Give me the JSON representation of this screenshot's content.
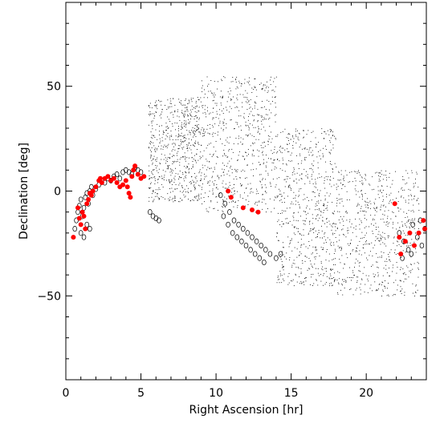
{
  "chart_data": {
    "type": "scatter",
    "xlabel": "Right Ascension [hr]",
    "ylabel": "Declination [deg]",
    "xlim": [
      0,
      24
    ],
    "ylim": [
      -90,
      90
    ],
    "xticks": [
      0,
      5,
      10,
      15,
      20
    ],
    "yticks": [
      -50,
      0,
      50
    ],
    "xtick_labels": [
      "0",
      "5",
      "10",
      "15",
      "20"
    ],
    "ytick_labels": [
      "−50",
      "0",
      "50"
    ],
    "grid": false,
    "legend": "none",
    "colors": {
      "background_points": "#000000",
      "open_markers": "#000000",
      "highlight_points": "#ff0000"
    },
    "series": [
      {
        "marker": "small-dot",
        "description_values": "dense cloud of background points",
        "cloud_regions": [
          {
            "ra": [
              5.5,
              9.0
            ],
            "dec": [
              -5,
              45
            ]
          },
          {
            "ra": [
              9.0,
              14.0
            ],
            "dec": [
              -10,
              55
            ]
          },
          {
            "ra": [
              14.0,
              18.0
            ],
            "dec": [
              -45,
              30
            ]
          },
          {
            "ra": [
              18.0,
              23.5
            ],
            "dec": [
              -50,
              10
            ]
          }
        ]
      },
      {
        "marker": "open-circle",
        "points": [
          [
            0.6,
            -18
          ],
          [
            0.7,
            -14
          ],
          [
            0.8,
            -10
          ],
          [
            0.9,
            -7
          ],
          [
            1.0,
            -4
          ],
          [
            1.1,
            -12
          ],
          [
            1.2,
            -8
          ],
          [
            1.3,
            -3
          ],
          [
            1.4,
            -1
          ],
          [
            1.5,
            -6
          ],
          [
            1.6,
            0
          ],
          [
            1.7,
            2
          ],
          [
            1.8,
            -2
          ],
          [
            2.0,
            1
          ],
          [
            2.2,
            3
          ],
          [
            2.4,
            5
          ],
          [
            2.6,
            4
          ],
          [
            2.8,
            6
          ],
          [
            3.0,
            5
          ],
          [
            3.2,
            7
          ],
          [
            3.4,
            8
          ],
          [
            3.6,
            6
          ],
          [
            3.8,
            9
          ],
          [
            4.0,
            10
          ],
          [
            4.2,
            9
          ],
          [
            4.4,
            8
          ],
          [
            4.6,
            11
          ],
          [
            4.8,
            10
          ],
          [
            5.0,
            9
          ],
          [
            1.0,
            -20
          ],
          [
            1.2,
            -22
          ],
          [
            1.4,
            -16
          ],
          [
            1.6,
            -18
          ],
          [
            5.6,
            -10
          ],
          [
            5.8,
            -12
          ],
          [
            6.0,
            -13
          ],
          [
            6.2,
            -14
          ],
          [
            10.3,
            -2
          ],
          [
            10.6,
            -6
          ],
          [
            10.9,
            -10
          ],
          [
            11.2,
            -14
          ],
          [
            11.5,
            -16
          ],
          [
            11.8,
            -18
          ],
          [
            12.1,
            -20
          ],
          [
            12.4,
            -22
          ],
          [
            12.7,
            -24
          ],
          [
            13.0,
            -26
          ],
          [
            13.3,
            -28
          ],
          [
            13.6,
            -30
          ],
          [
            14.0,
            -32
          ],
          [
            14.3,
            -30
          ],
          [
            10.5,
            -12
          ],
          [
            10.8,
            -16
          ],
          [
            11.1,
            -20
          ],
          [
            11.4,
            -22
          ],
          [
            11.7,
            -24
          ],
          [
            12.0,
            -26
          ],
          [
            12.3,
            -28
          ],
          [
            12.6,
            -30
          ],
          [
            12.9,
            -32
          ],
          [
            13.2,
            -34
          ],
          [
            22.2,
            -20
          ],
          [
            22.5,
            -24
          ],
          [
            22.8,
            -28
          ],
          [
            23.1,
            -16
          ],
          [
            23.4,
            -22
          ],
          [
            23.7,
            -26
          ],
          [
            23.9,
            -18
          ],
          [
            22.4,
            -32
          ],
          [
            23.0,
            -30
          ],
          [
            23.6,
            -14
          ]
        ]
      },
      {
        "marker": "filled-circle",
        "points": [
          [
            0.5,
            -22
          ],
          [
            0.8,
            -8
          ],
          [
            0.9,
            -13
          ],
          [
            1.0,
            -16
          ],
          [
            1.1,
            -10
          ],
          [
            1.2,
            -12
          ],
          [
            1.3,
            -18
          ],
          [
            1.4,
            -6
          ],
          [
            1.5,
            -4
          ],
          [
            1.6,
            -1
          ],
          [
            1.7,
            -2
          ],
          [
            1.8,
            0
          ],
          [
            2.0,
            2
          ],
          [
            2.2,
            5
          ],
          [
            2.3,
            6
          ],
          [
            2.4,
            4
          ],
          [
            2.6,
            6
          ],
          [
            2.8,
            7
          ],
          [
            3.0,
            5
          ],
          [
            3.2,
            6
          ],
          [
            3.4,
            4
          ],
          [
            3.6,
            2
          ],
          [
            3.8,
            3
          ],
          [
            4.0,
            5
          ],
          [
            4.1,
            2
          ],
          [
            4.2,
            -1
          ],
          [
            4.3,
            -3
          ],
          [
            4.4,
            7
          ],
          [
            4.5,
            10
          ],
          [
            4.6,
            12
          ],
          [
            4.8,
            8
          ],
          [
            5.0,
            6
          ],
          [
            5.2,
            7
          ],
          [
            10.8,
            0
          ],
          [
            11.0,
            -3
          ],
          [
            11.8,
            -8
          ],
          [
            12.4,
            -9
          ],
          [
            12.8,
            -10
          ],
          [
            21.9,
            -6
          ],
          [
            22.2,
            -22
          ],
          [
            22.3,
            -30
          ],
          [
            22.6,
            -24
          ],
          [
            22.9,
            -20
          ],
          [
            23.2,
            -26
          ],
          [
            23.5,
            -20
          ],
          [
            23.8,
            -14
          ],
          [
            23.9,
            -18
          ]
        ]
      }
    ]
  }
}
